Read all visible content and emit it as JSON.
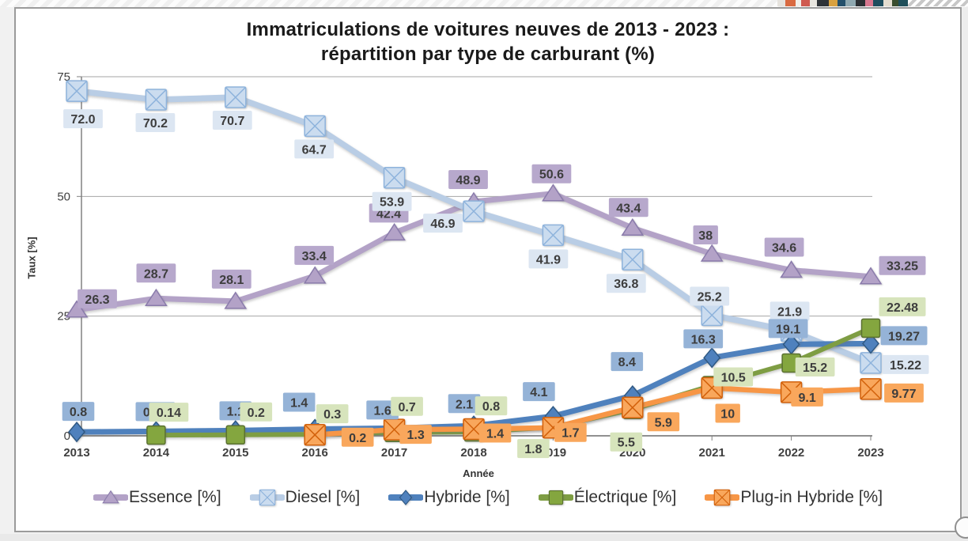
{
  "chart_data": {
    "type": "line",
    "title_line1": "Immatriculations de voitures neuves de 2013 - 2023 :",
    "title_line2": "répartition par type de carburant (%)",
    "xlabel": "Année",
    "ylabel": "Taux [%]",
    "ylim": [
      0,
      75
    ],
    "yticks": [
      75,
      50,
      25,
      0
    ],
    "grid": true,
    "legend_position": "bottom",
    "categories": [
      "2013",
      "2014",
      "2015",
      "2016",
      "2017",
      "2018",
      "2019",
      "2020",
      "2021",
      "2022",
      "2023"
    ],
    "series": [
      {
        "name": "Essence [%]",
        "marker": "triangle",
        "line_color": "#b3a2c7",
        "edge_color": "#8a7bab",
        "label_bg": "#b7a8cc",
        "line_width": 7,
        "values": [
          26.3,
          28.7,
          28.1,
          33.4,
          42.4,
          48.9,
          50.6,
          43.4,
          38,
          34.6,
          33.25
        ],
        "labels": [
          "26.3",
          "28.7",
          "28.1",
          "33.4",
          "42.4",
          "48.9",
          "50.6",
          "43.4",
          "38",
          "34.6",
          "33.25"
        ],
        "label_dx": [
          26,
          0,
          -5,
          -1,
          -7,
          -7,
          -2,
          -5,
          -8,
          -9,
          40
        ],
        "label_dy": [
          -14,
          -32,
          -28,
          -26,
          -25,
          -28,
          -25,
          -26,
          -24,
          -29,
          -14
        ]
      },
      {
        "name": "Diesel [%]",
        "marker": "square-x",
        "line_color": "#b9cde5",
        "edge_color": "#8eb3dc",
        "marker_fill": "#cbdcef",
        "label_bg": "#dce6f2",
        "line_width": 7.5,
        "values": [
          72.0,
          70.2,
          70.7,
          64.7,
          53.9,
          46.9,
          41.9,
          36.8,
          25.2,
          21.9,
          15.22
        ],
        "labels": [
          "72.0",
          "70.2",
          "70.7",
          "64.7",
          "53.9",
          "46.9",
          "41.9",
          "36.8",
          "25.2",
          "21.9",
          "15.22"
        ],
        "label_dx": [
          8,
          -1,
          -4,
          -1,
          -3,
          -39,
          -6,
          -8,
          -3,
          -2,
          44
        ],
        "label_dy": [
          35,
          29,
          29,
          29,
          30,
          15,
          30,
          30,
          -24,
          -25,
          2
        ]
      },
      {
        "name": "Hybride [%]",
        "marker": "diamond",
        "line_color": "#4f81bd",
        "edge_color": "#2f5984",
        "label_bg": "#95b3d7",
        "line_width": 7,
        "values": [
          0.8,
          0.92,
          1.1,
          1.4,
          1.6,
          2.1,
          4.1,
          8.4,
          16.3,
          19.1,
          19.27
        ],
        "labels": [
          "0.8",
          "0.92",
          "1.1",
          "1.4",
          "1.6",
          "2.1",
          "4.1",
          "8.4",
          "16.3",
          "19.1",
          "19.27"
        ],
        "label_dx": [
          2,
          -1,
          0,
          -20,
          -15,
          -12,
          -18,
          -7,
          -11,
          -4,
          42
        ],
        "label_dy": [
          -26,
          -25,
          -25,
          -34,
          -23,
          -28,
          -31,
          -43,
          -24,
          -20,
          -10
        ]
      },
      {
        "name": "Électrique [%]",
        "marker": "square",
        "line_color": "#7e9d43",
        "edge_color": "#5a7130",
        "marker_fill": "#84a63f",
        "label_bg": "#d7e4bc",
        "line_width": 6,
        "values": [
          null,
          0.14,
          0.2,
          0.3,
          0.7,
          0.8,
          1.8,
          5.5,
          10.5,
          15.2,
          22.48
        ],
        "labels": [
          "",
          "0.14",
          "0.2",
          "0.3",
          "0.7",
          "0.8",
          "1.8",
          "5.5",
          "10.5",
          "15.2",
          "22.48"
        ],
        "label_dx": [
          0,
          16,
          26,
          22,
          16,
          22,
          -25,
          -8,
          27,
          30,
          40
        ],
        "label_dy": [
          0,
          -29,
          -29,
          -26,
          -33,
          -33,
          27,
          41,
          -11,
          5,
          -27
        ]
      },
      {
        "name": "Plug-in Hybride [%]",
        "marker": "square-x",
        "line_color": "#f79646",
        "edge_color": "#d2610b",
        "marker_fill": "#f9a75c",
        "label_bg": "#f9a75c",
        "line_width": 6.5,
        "values": [
          null,
          null,
          null,
          0.2,
          1.3,
          1.4,
          1.7,
          5.9,
          10,
          9.1,
          9.77
        ],
        "labels": [
          "",
          "",
          "",
          "0.2",
          "1.3",
          "1.4",
          "1.7",
          "5.9",
          "10",
          "9.1",
          "9.77"
        ],
        "label_dx": [
          0,
          0,
          0,
          54,
          27,
          27,
          22,
          39,
          20,
          20,
          42
        ],
        "label_dy": [
          0,
          0,
          0,
          3,
          6,
          5,
          6,
          18,
          32,
          6,
          5
        ]
      }
    ]
  },
  "style": {
    "grid_color": "#a6a6a6",
    "axis_color": "#808080",
    "tick_text_color": "#3f3f3f",
    "label_text_color": "#3d3d3d"
  },
  "background_artifacts": {
    "fragments": [
      {
        "w": 10,
        "c": "#e6e3de"
      },
      {
        "w": 13,
        "c": "#d96a41"
      },
      {
        "w": 7,
        "c": "#f2efe9"
      },
      {
        "w": 11,
        "c": "#cf5a50"
      },
      {
        "w": 9,
        "c": "#e8e6e0"
      },
      {
        "w": 15,
        "c": "#2e3338"
      },
      {
        "w": 11,
        "c": "#d9a13f"
      },
      {
        "w": 10,
        "c": "#24506b"
      },
      {
        "w": 13,
        "c": "#8fa8b0"
      },
      {
        "w": 12,
        "c": "#2b2f33"
      },
      {
        "w": 10,
        "c": "#d8778f"
      },
      {
        "w": 13,
        "c": "#1e4d5e"
      },
      {
        "w": 11,
        "c": "#e4ddd0"
      },
      {
        "w": 8,
        "c": "#394d2e"
      }
    ]
  }
}
